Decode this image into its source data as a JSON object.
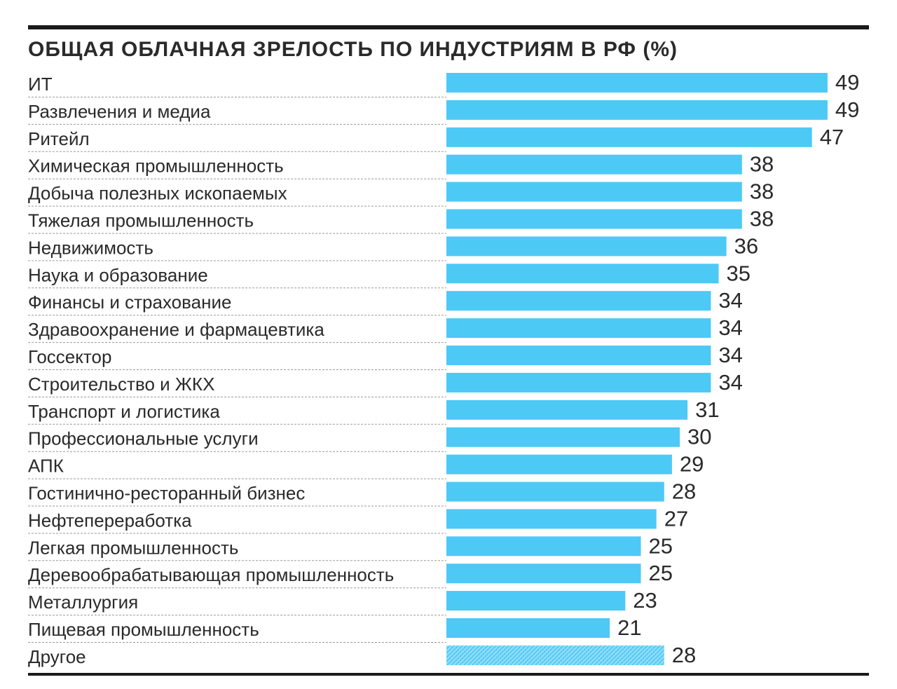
{
  "chart_data": {
    "type": "bar",
    "orientation": "horizontal",
    "title": "ОБЩАЯ ОБЛАЧНАЯ ЗРЕЛОСТЬ ПО ИНДУСТРИЯМ В РФ (%)",
    "categories": [
      "ИТ",
      "Развлечения и медиа",
      "Ритейл",
      "Химическая промышленность",
      "Добыча полезных ископаемых",
      "Тяжелая промышленность",
      "Недвижимость",
      "Наука и образование",
      "Финансы и страхование",
      "Здравоохранение и фармацевтика",
      "Госсектор",
      "Строительство и ЖКХ",
      "Транспорт и логистика",
      "Профессиональные услуги",
      "АПК",
      "Гостинично-ресторанный бизнес",
      "Нефтепереработка",
      "Легкая промышленность",
      "Деревообрабатывающая промышленность",
      "Металлургия",
      "Пищевая промышленность",
      "Другое"
    ],
    "values": [
      49,
      49,
      47,
      38,
      38,
      38,
      36,
      35,
      34,
      34,
      34,
      34,
      31,
      30,
      29,
      28,
      27,
      25,
      25,
      23,
      21,
      28
    ],
    "patterned": [
      false,
      false,
      false,
      false,
      false,
      false,
      false,
      false,
      false,
      false,
      false,
      false,
      false,
      false,
      false,
      false,
      false,
      false,
      false,
      false,
      false,
      true
    ],
    "bar_color": "#4dc9f6",
    "pattern_color": "#9fe0f8",
    "text_color": "#2a2a2a",
    "rule_color": "#1a1a1a",
    "separator_color": "#9a9a9a",
    "grid": false,
    "legend": "none"
  }
}
